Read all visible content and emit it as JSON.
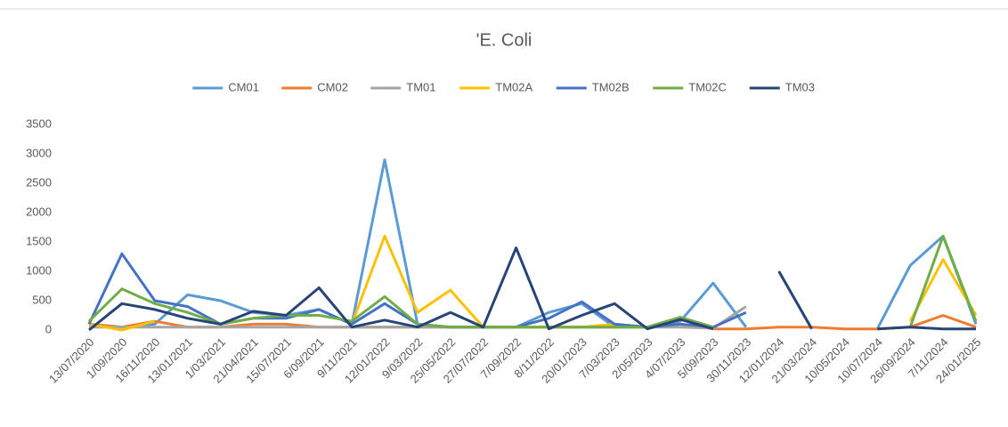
{
  "chart_data": {
    "type": "line",
    "title": "'E. Coli",
    "categories": [
      "13/07/2020",
      "1/09/2020",
      "16/11/2020",
      "13/01/2021",
      "1/03/2021",
      "21/04/2021",
      "15/07/2021",
      "6/09/2021",
      "9/11/2021",
      "12/01/2022",
      "9/03/2022",
      "25/05/2022",
      "27/07/2022",
      "7/09/2022",
      "8/11/2022",
      "20/01/2023",
      "7/03/2023",
      "2/05/2023",
      "4/07/2023",
      "5/09/2023",
      "30/11/2023",
      "12/01/2024",
      "21/03/2024",
      "10/05/2024",
      "10/07/2024",
      "26/09/2024",
      "7/11/2024",
      "24/01/2025"
    ],
    "series": [
      {
        "name": "CM01",
        "color": "#5b9bd5",
        "values": [
          100,
          50,
          100,
          600,
          500,
          300,
          250,
          350,
          100,
          2900,
          100,
          50,
          50,
          50,
          300,
          450,
          50,
          50,
          150,
          800,
          50,
          null,
          null,
          null,
          20,
          1100,
          1600,
          100
        ]
      },
      {
        "name": "CM02",
        "color": "#ed7d31",
        "values": [
          100,
          50,
          150,
          50,
          50,
          100,
          100,
          50,
          50,
          50,
          50,
          50,
          50,
          50,
          50,
          50,
          50,
          50,
          100,
          20,
          20,
          50,
          50,
          20,
          20,
          50,
          250,
          50
        ]
      },
      {
        "name": "TM01",
        "color": "#a5a5a5",
        "values": [
          50,
          50,
          50,
          50,
          50,
          50,
          50,
          50,
          50,
          50,
          50,
          50,
          50,
          50,
          50,
          50,
          50,
          50,
          50,
          30,
          400,
          null,
          null,
          null,
          null,
          null,
          null,
          null
        ]
      },
      {
        "name": "TM02A",
        "color": "#ffc000",
        "values": [
          100,
          0,
          150,
          null,
          null,
          null,
          null,
          null,
          100,
          1600,
          300,
          680,
          50,
          50,
          50,
          50,
          100,
          50,
          100,
          50,
          null,
          null,
          null,
          null,
          null,
          150,
          1200,
          250
        ]
      },
      {
        "name": "TM02B",
        "color": "#4472c4",
        "values": [
          100,
          1300,
          500,
          400,
          100,
          200,
          200,
          350,
          100,
          450,
          100,
          50,
          50,
          50,
          200,
          480,
          100,
          50,
          100,
          50,
          300,
          null,
          null,
          null,
          null,
          null,
          null,
          null
        ]
      },
      {
        "name": "TM02C",
        "color": "#70ad47",
        "values": [
          150,
          700,
          450,
          300,
          100,
          200,
          250,
          250,
          150,
          570,
          100,
          50,
          50,
          50,
          50,
          50,
          50,
          50,
          220,
          50,
          null,
          null,
          null,
          null,
          null,
          50,
          1600,
          150
        ]
      },
      {
        "name": "TM03",
        "color": "#264478",
        "values": [
          0,
          450,
          350,
          200,
          100,
          320,
          250,
          720,
          50,
          170,
          50,
          300,
          50,
          1400,
          20,
          250,
          450,
          20,
          180,
          20,
          null,
          1000,
          20,
          null,
          20,
          50,
          20,
          20
        ]
      }
    ],
    "ylim": [
      0,
      3500
    ],
    "yticks": [
      0,
      500,
      1000,
      1500,
      2000,
      2500,
      3000,
      3500
    ],
    "grid": false,
    "legend": "top"
  }
}
